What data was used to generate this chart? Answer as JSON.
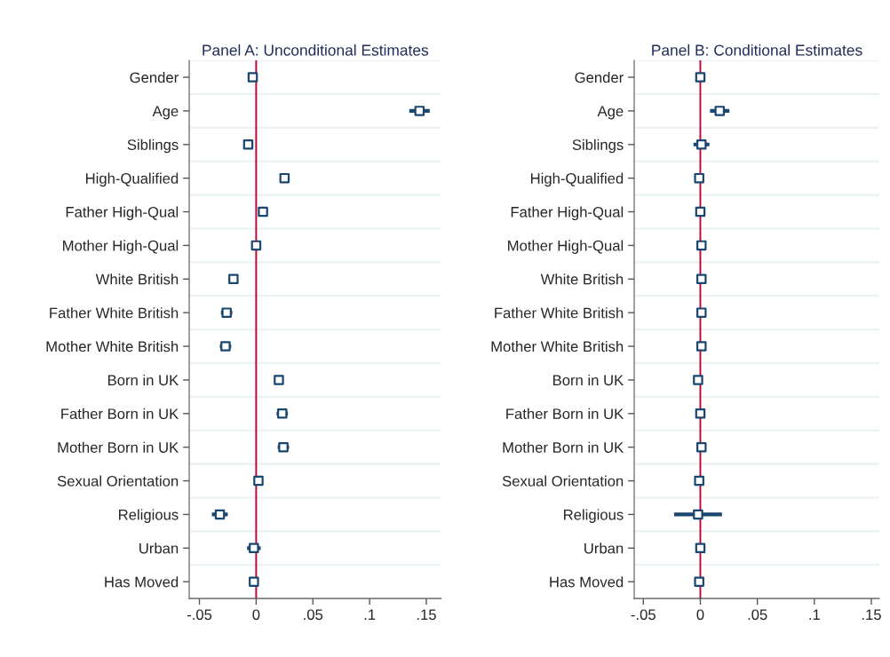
{
  "chart_data": [
    {
      "type": "scatter",
      "orientation": "horizontal",
      "title": "Panel A: Unconditional Estimates",
      "categories": [
        "Gender",
        "Age",
        "Siblings",
        "High-Qualified",
        "Father High-Qual",
        "Mother High-Qual",
        "White British",
        "Father White British",
        "Mother White British",
        "Born in UK",
        "Father Born in UK",
        "Mother Born in UK",
        "Sexual Orientation",
        "Religious",
        "Urban",
        "Has Moved"
      ],
      "series": [
        {
          "color": "#1a476f",
          "values": [
            -0.003,
            0.144,
            -0.007,
            0.025,
            0.006,
            0.0,
            -0.02,
            -0.026,
            -0.027,
            0.02,
            0.023,
            0.024,
            0.002,
            -0.032,
            -0.002,
            -0.002
          ],
          "errors": [
            null,
            0.009,
            0.003,
            0.004,
            0.004,
            0.004,
            0.004,
            0.005,
            0.005,
            0.004,
            0.005,
            0.005,
            null,
            0.007,
            0.006,
            null
          ]
        }
      ],
      "xlim": [
        -0.059,
        0.163
      ],
      "xticks": [
        {
          "value": -0.05,
          "label": "-.05"
        },
        0,
        {
          "value": 0.05,
          "label": ".05"
        },
        {
          "value": 0.1,
          "label": ".1"
        },
        {
          "value": 0.15,
          "label": ".15"
        }
      ],
      "ref_lines": [
        {
          "axis": "x",
          "value": 0,
          "color": "#c10534"
        }
      ],
      "grid": "y",
      "marker": "square"
    },
    {
      "type": "scatter",
      "orientation": "horizontal",
      "title": "Panel B: Conditional Estimates",
      "categories": [
        "Gender",
        "Age",
        "Siblings",
        "High-Qualified",
        "Father High-Qual",
        "Mother High-Qual",
        "White British",
        "Father White British",
        "Mother White British",
        "Born in UK",
        "Father Born in UK",
        "Mother Born in UK",
        "Sexual Orientation",
        "Religious",
        "Urban",
        "Has Moved"
      ],
      "series": [
        {
          "color": "#1a476f",
          "values": [
            0.0,
            0.017,
            0.001,
            -0.001,
            0.0,
            0.001,
            0.001,
            0.001,
            0.001,
            -0.002,
            0.0,
            0.001,
            -0.001,
            -0.002,
            0.0,
            -0.001
          ],
          "errors": [
            null,
            0.0085,
            0.007,
            0.003,
            0.003,
            0.002,
            null,
            null,
            null,
            null,
            null,
            null,
            null,
            0.021,
            null,
            null
          ]
        }
      ],
      "xlim": [
        -0.058,
        0.157
      ],
      "xticks": [
        {
          "value": -0.05,
          "label": "-.05"
        },
        0,
        {
          "value": 0.05,
          "label": ".05"
        },
        {
          "value": 0.1,
          "label": ".1"
        },
        {
          "value": 0.15,
          "label": ".15"
        }
      ],
      "ref_lines": [
        {
          "axis": "x",
          "value": 0,
          "color": "#c10534"
        }
      ],
      "grid": "y",
      "marker": "square"
    }
  ]
}
